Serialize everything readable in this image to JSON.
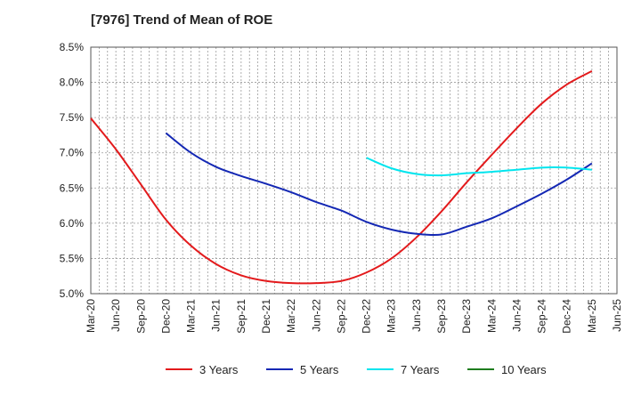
{
  "title": "[7976]  Trend of Mean of ROE",
  "chart_data": {
    "type": "line",
    "title": "[7976]  Trend of Mean of ROE",
    "xlabel": "",
    "ylabel": "",
    "categories": [
      "Mar-20",
      "Jun-20",
      "Sep-20",
      "Dec-20",
      "Mar-21",
      "Jun-21",
      "Sep-21",
      "Dec-21",
      "Mar-22",
      "Jun-22",
      "Sep-22",
      "Dec-22",
      "Mar-23",
      "Jun-23",
      "Sep-23",
      "Dec-23",
      "Mar-24",
      "Jun-24",
      "Sep-24",
      "Dec-24",
      "Mar-25",
      "Jun-25"
    ],
    "yticks": [
      "5.0%",
      "5.5%",
      "6.0%",
      "6.5%",
      "7.0%",
      "7.5%",
      "8.0%",
      "8.5%"
    ],
    "ylim": [
      5.0,
      8.5
    ],
    "y_unit": "%",
    "grid": true,
    "legend_position": "bottom",
    "series": [
      {
        "name": "3 Years",
        "color": "#e31a1c",
        "values": [
          7.49,
          7.05,
          6.55,
          6.05,
          5.68,
          5.42,
          5.26,
          5.18,
          5.15,
          5.15,
          5.18,
          5.3,
          5.5,
          5.8,
          6.17,
          6.58,
          6.97,
          7.35,
          7.7,
          7.97,
          8.16,
          null
        ]
      },
      {
        "name": "5 Years",
        "color": "#1428b4",
        "values": [
          null,
          null,
          null,
          7.28,
          7.0,
          6.8,
          6.67,
          6.56,
          6.44,
          6.3,
          6.18,
          6.02,
          5.91,
          5.85,
          5.84,
          5.95,
          6.07,
          6.24,
          6.42,
          6.62,
          6.85,
          null
        ]
      },
      {
        "name": "7 Years",
        "color": "#00e5ee",
        "values": [
          null,
          null,
          null,
          null,
          null,
          null,
          null,
          null,
          null,
          null,
          null,
          6.93,
          6.78,
          6.7,
          6.68,
          6.71,
          6.73,
          6.76,
          6.79,
          6.79,
          6.76,
          null
        ]
      },
      {
        "name": "10 Years",
        "color": "#1e7d1e",
        "values": [
          null,
          null,
          null,
          null,
          null,
          null,
          null,
          null,
          null,
          null,
          null,
          null,
          null,
          null,
          null,
          null,
          null,
          null,
          null,
          null,
          null,
          null
        ]
      }
    ]
  }
}
